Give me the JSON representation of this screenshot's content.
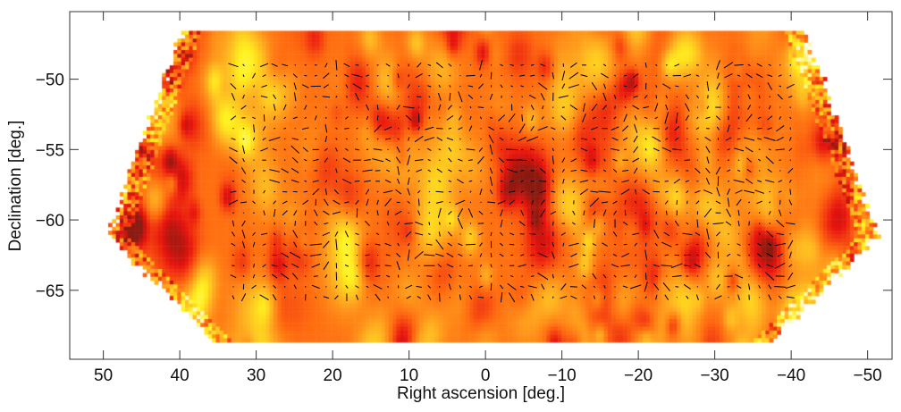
{
  "chart_data": {
    "type": "heatmap",
    "xlabel": "Right ascension [deg.]",
    "ylabel": "Declination [deg.]",
    "xlim": [
      54.4,
      -53.2
    ],
    "ylim": [
      -69.9,
      -45.2
    ],
    "x_ticks": [
      50,
      40,
      30,
      20,
      10,
      0,
      -10,
      -20,
      -30,
      -40,
      -50
    ],
    "x_tick_labels": [
      "50",
      "40",
      "30",
      "20",
      "10",
      "0",
      "−10",
      "−20",
      "−30",
      "−40",
      "−50"
    ],
    "y_ticks": [
      -50,
      -55,
      -60,
      -65
    ],
    "y_tick_labels": [
      "−50",
      "−55",
      "−60",
      "−65"
    ],
    "colormap": [
      "#8b1a10",
      "#e8140f",
      "#ff6a10",
      "#ffb020",
      "#fff21e",
      "#fff8c0"
    ],
    "overlay": "polarization vectors (black line segments)",
    "grid": false
  }
}
